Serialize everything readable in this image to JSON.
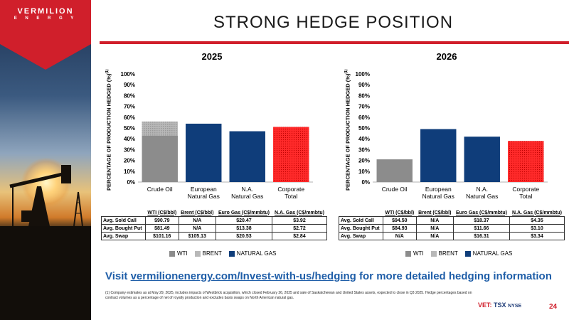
{
  "brand": {
    "line1": "VERMILION",
    "line2": "E N E R G Y",
    "accent": "#d01f2b",
    "blue": "#0f3d7a"
  },
  "title": "STRONG HEDGE POSITION",
  "chart_data": [
    {
      "type": "bar",
      "title": "2025",
      "ylabel": "PERCENTAGE OF PRODUCTION HEDGED (%)",
      "ylabel_sup": "(1)",
      "categories": [
        "Crude Oil",
        "European Natural Gas",
        "N.A. Natural Gas",
        "Corporate Total"
      ],
      "category_lines": [
        [
          "Crude Oil"
        ],
        [
          "European",
          "Natural Gas"
        ],
        [
          "N.A.",
          "Natural Gas"
        ],
        [
          "Corporate",
          "Total"
        ]
      ],
      "ylim": [
        0,
        100
      ],
      "yticks": [
        "0%",
        "10%",
        "20%",
        "30%",
        "40%",
        "50%",
        "60%",
        "70%",
        "80%",
        "90%",
        "100%"
      ],
      "series": [
        {
          "name": "WTI",
          "values": [
            43,
            0,
            0,
            0
          ]
        },
        {
          "name": "BRENT",
          "values": [
            13,
            0,
            0,
            0
          ]
        },
        {
          "name": "NATURAL GAS",
          "values": [
            0,
            54,
            47,
            0
          ]
        }
      ],
      "corporate_total": 51,
      "grid": true
    },
    {
      "type": "bar",
      "title": "2026",
      "ylabel": "PERCENTAGE OF PRODUCTION HEDGED (%)",
      "ylabel_sup": "(1)",
      "categories": [
        "Crude Oil",
        "European Natural Gas",
        "N.A. Natural Gas",
        "Corporate Total"
      ],
      "category_lines": [
        [
          "Crude Oil"
        ],
        [
          "European",
          "Natural Gas"
        ],
        [
          "N.A.",
          "Natural Gas"
        ],
        [
          "Corporate",
          "Total"
        ]
      ],
      "ylim": [
        0,
        100
      ],
      "yticks": [
        "0%",
        "10%",
        "20%",
        "30%",
        "40%",
        "50%",
        "60%",
        "70%",
        "80%",
        "90%",
        "100%"
      ],
      "series": [
        {
          "name": "WTI",
          "values": [
            21,
            0,
            0,
            0
          ]
        },
        {
          "name": "BRENT",
          "values": [
            0,
            0,
            0,
            0
          ]
        },
        {
          "name": "NATURAL GAS",
          "values": [
            0,
            49,
            42,
            0
          ]
        }
      ],
      "corporate_total": 38,
      "grid": true
    }
  ],
  "colors": {
    "wti": "#8c8c8c",
    "brent": "#b8b8b8",
    "natural_gas": "#0f3d7a",
    "total": "#ff2020"
  },
  "tables": [
    {
      "headers": [
        "",
        "WTI (C$/bbl)",
        "Brent (C$/bbl)",
        "Euro Gas (C$/mmbtu)",
        "N.A. Gas (C$/mmbtu)"
      ],
      "rows": [
        [
          "Avg. Sold Call",
          "$90.79",
          "N/A",
          "$20.47",
          "$3.92"
        ],
        [
          "Avg. Bought Put",
          "$81.49",
          "N/A",
          "$13.38",
          "$2.72"
        ],
        [
          "Avg. Swap",
          "$101.16",
          "$105.13",
          "$20.53",
          "$2.84"
        ]
      ]
    },
    {
      "headers": [
        "",
        "WTI (C$/bbl)",
        "Brent (C$/bbl)",
        "Euro Gas (C$/mmbtu)",
        "N.A. Gas (C$/mmbtu)"
      ],
      "rows": [
        [
          "Avg. Sold Call",
          "$94.50",
          "N/A",
          "$18.37",
          "$4.35"
        ],
        [
          "Avg. Bought Put",
          "$84.93",
          "N/A",
          "$11.66",
          "$3.10"
        ],
        [
          "Avg. Swap",
          "N/A",
          "N/A",
          "$16.31",
          "$3.34"
        ]
      ]
    }
  ],
  "legend": {
    "wti": "WTI",
    "brent": "BRENT",
    "natural_gas": "NATURAL GAS"
  },
  "visit": {
    "prefix": "Visit ",
    "link": "vermilionenergy.com/Invest-with-us/hedging",
    "suffix": " for more detailed hedging information"
  },
  "footnote": "(1) Company estimates as at May 29, 2025, includes impacts of Westbrick acquisition, which closed February 26, 2025 and sale of Saskatchewan and United States assets, expected to close in Q3 2025. Hedge percentages based on contract volumes as a percentage of net of royalty production and excludes basis swaps on North American natural gas.",
  "ticker": {
    "vet": "VET:",
    "tsx": "TSX",
    "nyse": "NYSE"
  },
  "page_number": "24"
}
